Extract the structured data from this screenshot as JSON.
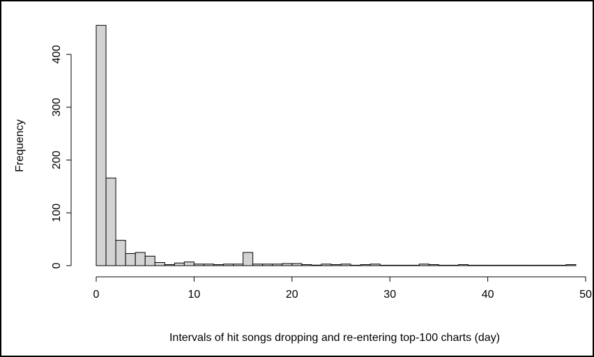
{
  "chart_data": {
    "type": "bar",
    "title": "",
    "xlabel": "Intervals of hit songs dropping and re-entering top-100 charts (day)",
    "ylabel": "Frequency",
    "xlim": [
      0,
      50
    ],
    "ylim": [
      0,
      450
    ],
    "x_ticks": [
      "0",
      "10",
      "20",
      "30",
      "40",
      "50"
    ],
    "y_ticks": [
      "0",
      "100",
      "200",
      "300",
      "400"
    ],
    "bin_width": 1,
    "bins_start": 0,
    "values": [
      455,
      166,
      48,
      23,
      25,
      18,
      6,
      2,
      5,
      7,
      3,
      3,
      2,
      3,
      3,
      25,
      3,
      3,
      3,
      4,
      4,
      2,
      1,
      3,
      2,
      3,
      0,
      2,
      3,
      0,
      0,
      0,
      0,
      3,
      2,
      0,
      0,
      2,
      0,
      0,
      0,
      0,
      0,
      0,
      0,
      0,
      0,
      0,
      2
    ],
    "grid": false,
    "legend": "none",
    "bar_color": "#d3d3d3",
    "edge_color": "#000000"
  }
}
